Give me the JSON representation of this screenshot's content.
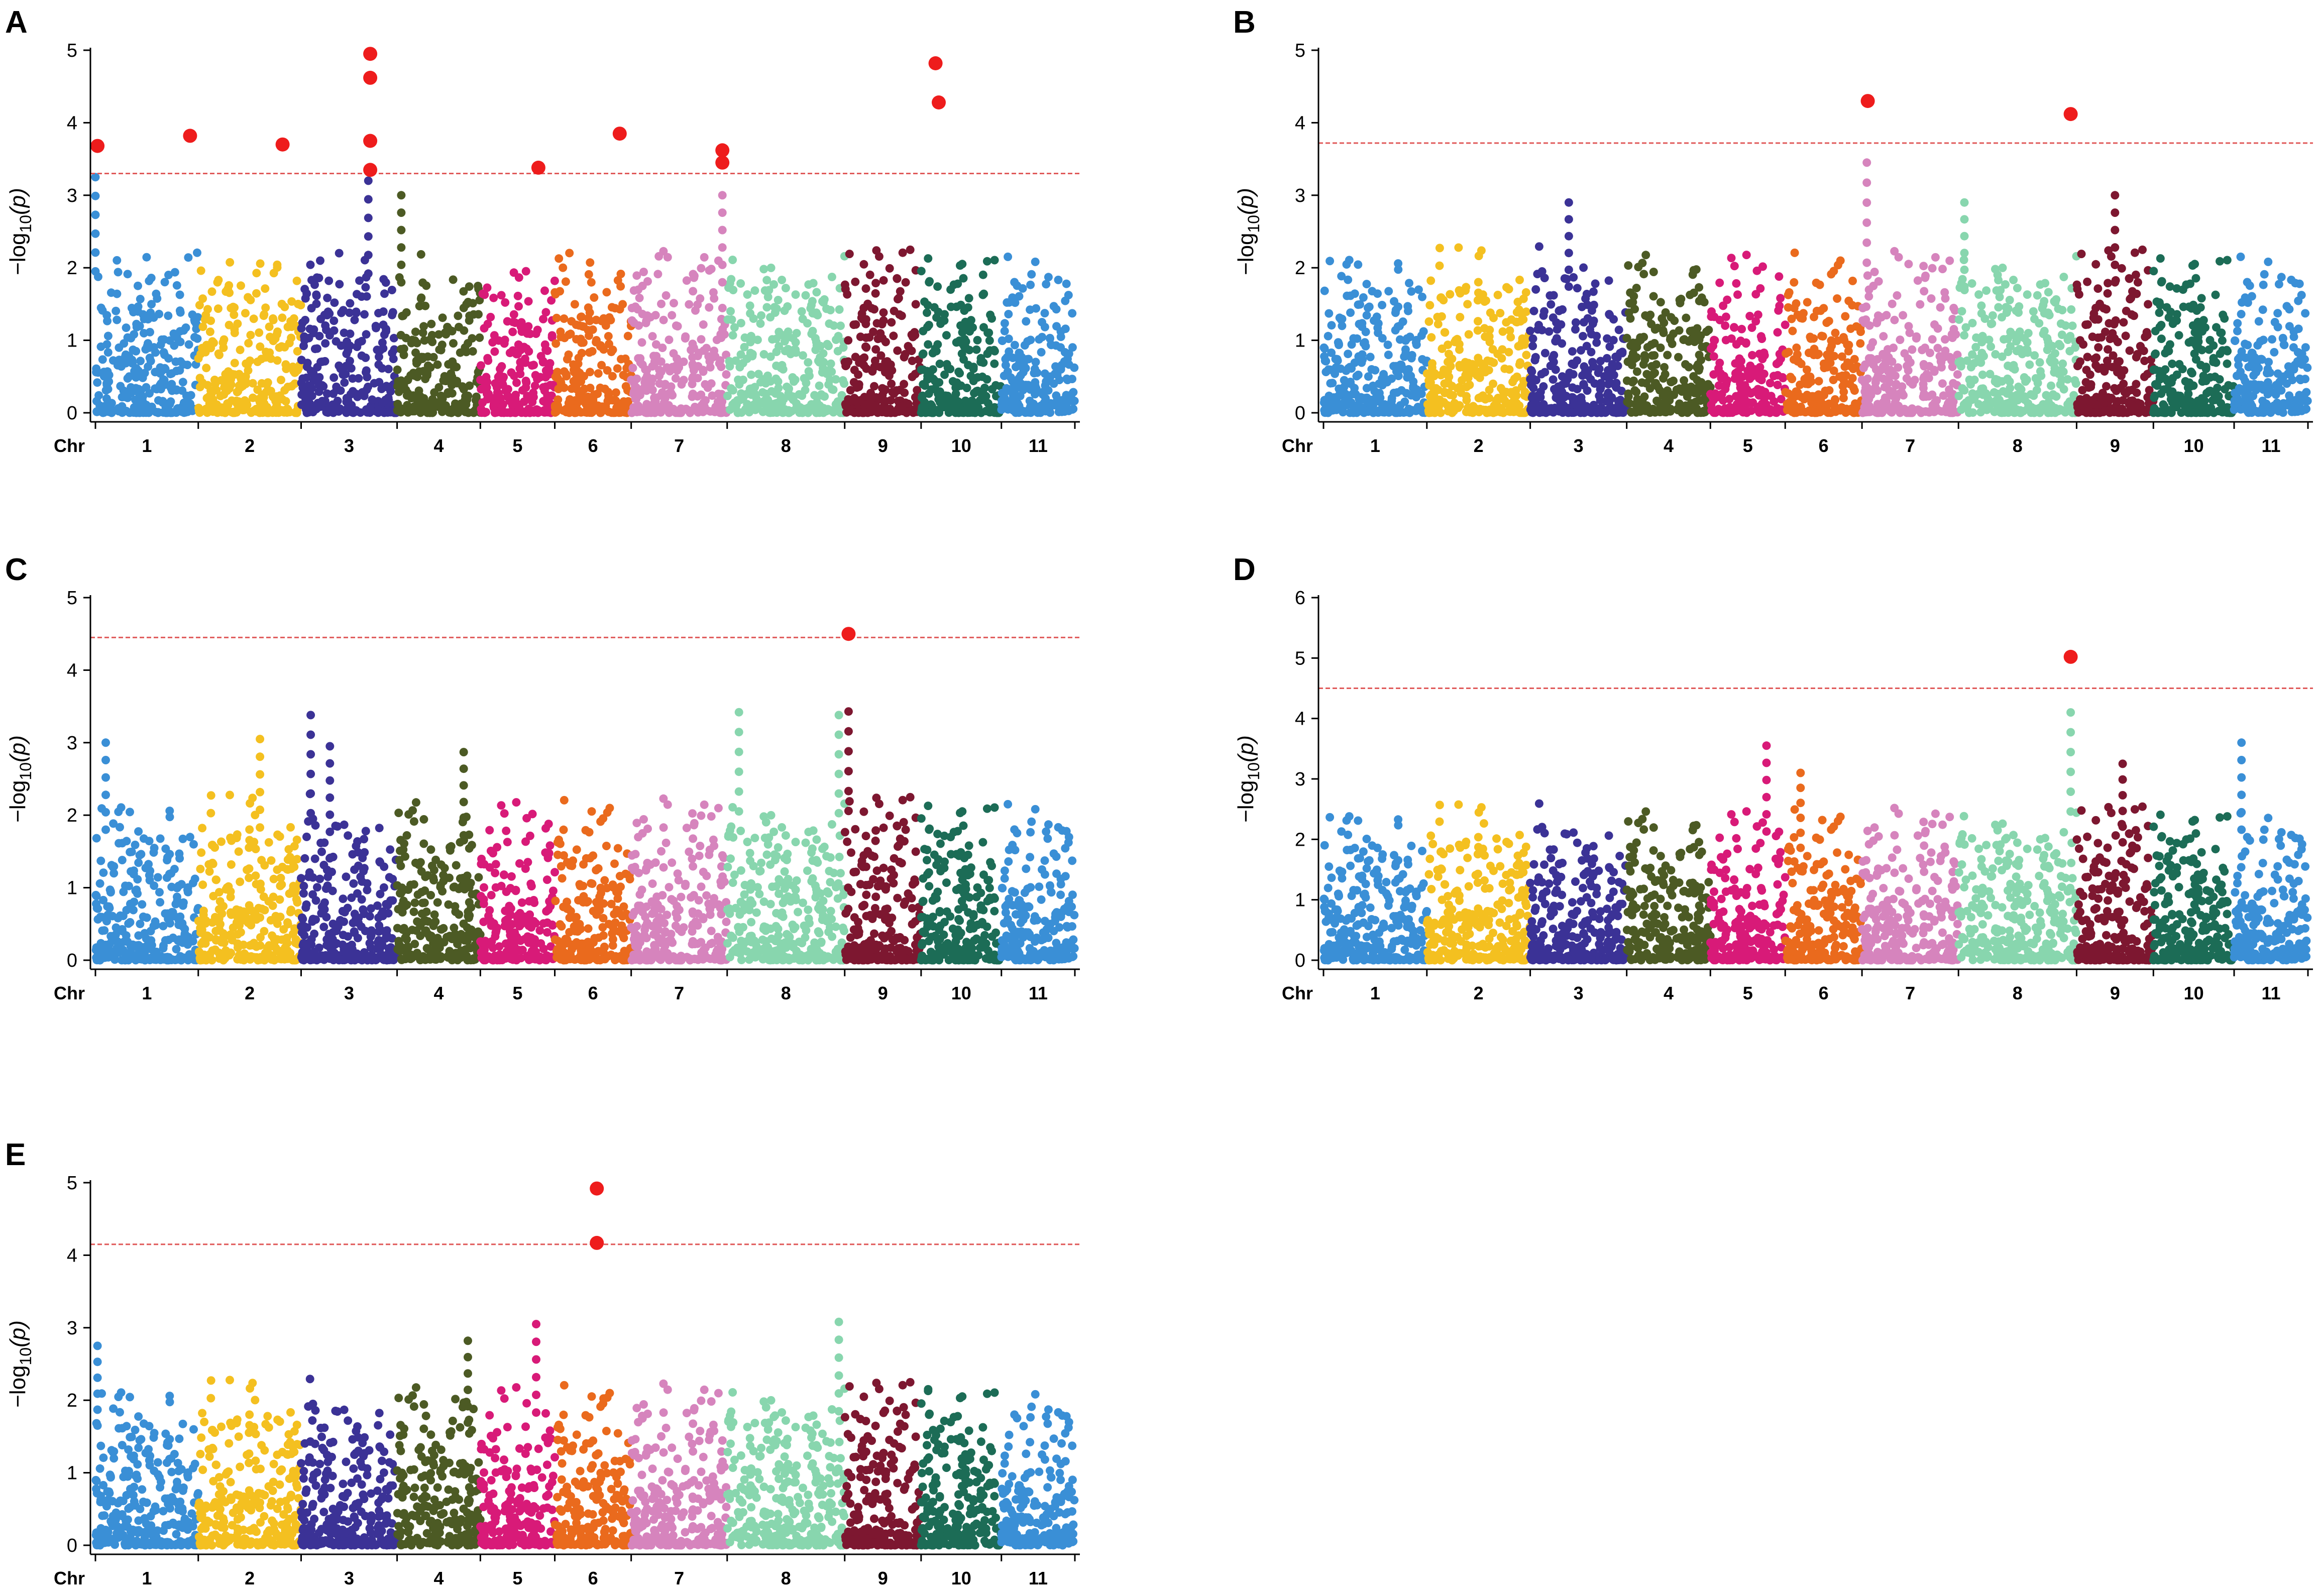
{
  "figure": {
    "chr_axis_label": "Chr",
    "ylabel_prefix": "−log",
    "ylabel_sub": "10",
    "ylabel_arg": "(p)",
    "point_colors": [
      "#3a8fd6",
      "#f4c020",
      "#3b3296",
      "#4c5a24",
      "#d81a78",
      "#ea6a1d",
      "#d684bd",
      "#88d6ae",
      "#7d1730",
      "#1c6c56",
      "#3a8fd6"
    ],
    "significant_color": "#ee1c1c",
    "threshold_color": "#e05a5a"
  },
  "chart_data": [
    {
      "panel": "A",
      "type": "scatter",
      "chromosomes": [
        "1",
        "2",
        "3",
        "4",
        "5",
        "6",
        "7",
        "8",
        "9",
        "10",
        "11"
      ],
      "ylim": [
        0,
        5
      ],
      "yticks": [
        0,
        1,
        2,
        3,
        4,
        5
      ],
      "threshold": 3.3,
      "max_background": 2.3,
      "peaks": [
        {
          "chr": 1,
          "pos": 0.0,
          "value": 3.25
        },
        {
          "chr": 3,
          "pos": 0.7,
          "value": 3.2
        },
        {
          "chr": 4,
          "pos": 0.05,
          "value": 3.0
        },
        {
          "chr": 7,
          "pos": 0.95,
          "value": 3.0
        }
      ],
      "significant": [
        {
          "chr": 1,
          "pos": 0.02,
          "value": 3.68
        },
        {
          "chr": 1,
          "pos": 0.92,
          "value": 3.82
        },
        {
          "chr": 2,
          "pos": 0.82,
          "value": 3.7
        },
        {
          "chr": 3,
          "pos": 0.72,
          "value": 4.95
        },
        {
          "chr": 3,
          "pos": 0.72,
          "value": 4.62
        },
        {
          "chr": 3,
          "pos": 0.72,
          "value": 3.75
        },
        {
          "chr": 3,
          "pos": 0.72,
          "value": 3.35
        },
        {
          "chr": 5,
          "pos": 0.78,
          "value": 3.38
        },
        {
          "chr": 6,
          "pos": 0.85,
          "value": 3.85
        },
        {
          "chr": 7,
          "pos": 0.95,
          "value": 3.62
        },
        {
          "chr": 7,
          "pos": 0.95,
          "value": 3.45
        },
        {
          "chr": 10,
          "pos": 0.18,
          "value": 4.82
        },
        {
          "chr": 10,
          "pos": 0.22,
          "value": 4.28
        }
      ]
    },
    {
      "panel": "B",
      "type": "scatter",
      "chromosomes": [
        "1",
        "2",
        "3",
        "4",
        "5",
        "6",
        "7",
        "8",
        "9",
        "10",
        "11"
      ],
      "ylim": [
        0,
        5
      ],
      "yticks": [
        0,
        1,
        2,
        3,
        4,
        5
      ],
      "threshold": 3.72,
      "max_background": 2.3,
      "peaks": [
        {
          "chr": 3,
          "pos": 0.4,
          "value": 2.9
        },
        {
          "chr": 7,
          "pos": 0.05,
          "value": 3.45
        },
        {
          "chr": 8,
          "pos": 0.05,
          "value": 2.9
        },
        {
          "chr": 9,
          "pos": 0.5,
          "value": 3.0
        }
      ],
      "significant": [
        {
          "chr": 7,
          "pos": 0.06,
          "value": 4.3
        },
        {
          "chr": 8,
          "pos": 0.95,
          "value": 4.12
        }
      ]
    },
    {
      "panel": "C",
      "type": "scatter",
      "chromosomes": [
        "1",
        "2",
        "3",
        "4",
        "5",
        "6",
        "7",
        "8",
        "9",
        "10",
        "11"
      ],
      "ylim": [
        0,
        5
      ],
      "yticks": [
        0,
        1,
        2,
        3,
        4,
        5
      ],
      "threshold": 4.45,
      "max_background": 2.3,
      "peaks": [
        {
          "chr": 1,
          "pos": 0.1,
          "value": 3.0
        },
        {
          "chr": 2,
          "pos": 0.6,
          "value": 3.05
        },
        {
          "chr": 3,
          "pos": 0.1,
          "value": 3.38
        },
        {
          "chr": 3,
          "pos": 0.3,
          "value": 2.95
        },
        {
          "chr": 4,
          "pos": 0.8,
          "value": 2.87
        },
        {
          "chr": 8,
          "pos": 0.1,
          "value": 3.42
        },
        {
          "chr": 8,
          "pos": 0.95,
          "value": 3.38
        },
        {
          "chr": 9,
          "pos": 0.05,
          "value": 3.43
        }
      ],
      "significant": [
        {
          "chr": 9,
          "pos": 0.05,
          "value": 4.5
        }
      ]
    },
    {
      "panel": "D",
      "type": "scatter",
      "chromosomes": [
        "1",
        "2",
        "3",
        "4",
        "5",
        "6",
        "7",
        "8",
        "9",
        "10",
        "11"
      ],
      "ylim": [
        0,
        6
      ],
      "yticks": [
        0,
        1,
        2,
        3,
        4,
        5,
        6
      ],
      "threshold": 4.5,
      "max_background": 2.6,
      "peaks": [
        {
          "chr": 5,
          "pos": 0.75,
          "value": 3.55
        },
        {
          "chr": 6,
          "pos": 0.2,
          "value": 3.1
        },
        {
          "chr": 8,
          "pos": 0.95,
          "value": 4.1
        },
        {
          "chr": 9,
          "pos": 0.6,
          "value": 3.25
        },
        {
          "chr": 11,
          "pos": 0.1,
          "value": 3.6
        }
      ],
      "significant": [
        {
          "chr": 8,
          "pos": 0.95,
          "value": 5.02
        }
      ]
    },
    {
      "panel": "E",
      "type": "scatter",
      "chromosomes": [
        "1",
        "2",
        "3",
        "4",
        "5",
        "6",
        "7",
        "8",
        "9",
        "10",
        "11"
      ],
      "ylim": [
        0,
        5
      ],
      "yticks": [
        0,
        1,
        2,
        3,
        4,
        5
      ],
      "threshold": 4.15,
      "max_background": 2.3,
      "peaks": [
        {
          "chr": 1,
          "pos": 0.02,
          "value": 2.75
        },
        {
          "chr": 4,
          "pos": 0.85,
          "value": 2.82
        },
        {
          "chr": 5,
          "pos": 0.75,
          "value": 3.05
        },
        {
          "chr": 8,
          "pos": 0.95,
          "value": 3.08
        }
      ],
      "significant": [
        {
          "chr": 6,
          "pos": 0.55,
          "value": 4.92
        },
        {
          "chr": 6,
          "pos": 0.55,
          "value": 4.17
        }
      ]
    }
  ]
}
